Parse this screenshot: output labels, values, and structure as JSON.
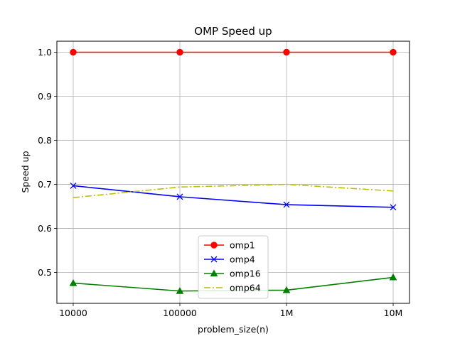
{
  "chart_data": {
    "type": "line",
    "title": "OMP Speed up",
    "xlabel": "problem_size(n)",
    "ylabel": "Speed up",
    "categories": [
      "10000",
      "100000",
      "1M",
      "10M"
    ],
    "ylim": [
      0.43,
      1.025
    ],
    "yticks": [
      "0.5",
      "0.6",
      "0.7",
      "0.8",
      "0.9",
      "1.0"
    ],
    "grid": true,
    "legend": "lower-center",
    "series": [
      {
        "name": "omp1",
        "values": [
          1.0,
          1.0,
          1.0,
          1.0
        ],
        "color": "#ff0000",
        "marker": "circle",
        "style": "solid"
      },
      {
        "name": "omp4",
        "values": [
          0.697,
          0.672,
          0.654,
          0.648
        ],
        "color": "#0000ff",
        "marker": "x",
        "style": "solid"
      },
      {
        "name": "omp16",
        "values": [
          0.476,
          0.458,
          0.46,
          0.489
        ],
        "color": "#008000",
        "marker": "triangle",
        "style": "solid"
      },
      {
        "name": "omp64",
        "values": [
          0.67,
          0.694,
          0.7,
          0.685
        ],
        "color": "#bfbf00",
        "marker": "none",
        "style": "dashdot"
      }
    ]
  }
}
